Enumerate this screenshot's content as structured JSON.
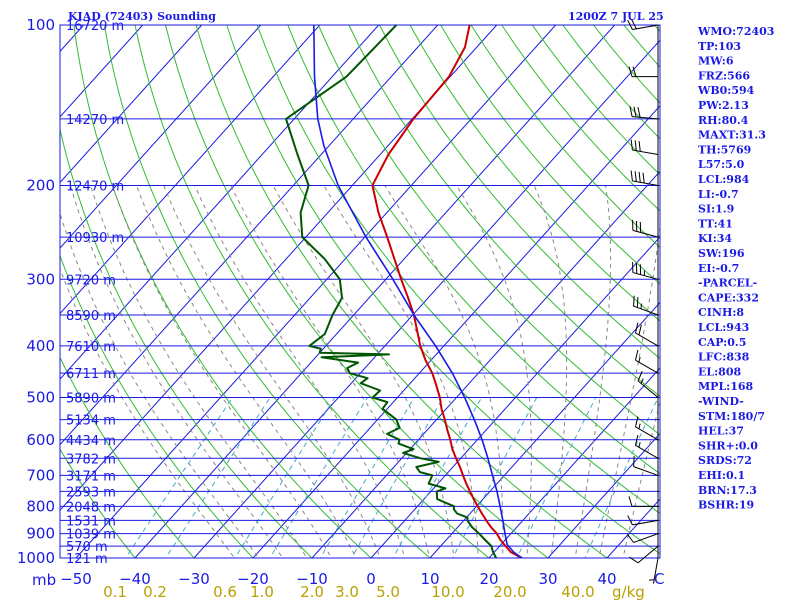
{
  "header": {
    "station": "KIAD (72403) Sounding",
    "datetime": "1200Z  7 JUL 25"
  },
  "colors": {
    "isobar": "#1a1ae6",
    "isotherm": "#1a1ae6",
    "dry_adiabat": "#33bb33",
    "moist_adiabat": "#888888",
    "mixing_ratio": "#44aacc",
    "temperature": "#cc0000",
    "dewpoint": "#005500",
    "parcel": "#1a1ae6",
    "wind": "#000000",
    "mixing_label": "#b8a100"
  },
  "chart_data": {
    "type": "line",
    "chart_kind": "skew-T log-P sounding",
    "pressure_unit_label": "mb",
    "mixing_ratio_unit_label": "g/kg",
    "pressure_levels": [
      {
        "p": 100,
        "label": "100",
        "height": "16720 m"
      },
      {
        "p": 150,
        "label": "",
        "height": "14270 m"
      },
      {
        "p": 200,
        "label": "200",
        "height": "12470 m"
      },
      {
        "p": 250,
        "label": "",
        "height": "10930 m"
      },
      {
        "p": 300,
        "label": "300",
        "height": "9720 m"
      },
      {
        "p": 350,
        "label": "",
        "height": "8590 m"
      },
      {
        "p": 400,
        "label": "400",
        "height": "7610 m"
      },
      {
        "p": 450,
        "label": "",
        "height": "6711 m"
      },
      {
        "p": 500,
        "label": "500",
        "height": "5890 m"
      },
      {
        "p": 550,
        "label": "",
        "height": "5134 m"
      },
      {
        "p": 600,
        "label": "600",
        "height": "4434 m"
      },
      {
        "p": 650,
        "label": "",
        "height": "3782 m"
      },
      {
        "p": 700,
        "label": "700",
        "height": "3171 m"
      },
      {
        "p": 750,
        "label": "",
        "height": "2593 m"
      },
      {
        "p": 800,
        "label": "800",
        "height": "2048 m"
      },
      {
        "p": 850,
        "label": "",
        "height": "1531 m"
      },
      {
        "p": 900,
        "label": "900",
        "height": "1039 m"
      },
      {
        "p": 950,
        "label": "",
        "height": "570 m"
      },
      {
        "p": 1000,
        "label": "1000",
        "height": "121 m"
      }
    ],
    "temperature_ticks": [
      -50,
      -40,
      -30,
      -20,
      -10,
      0,
      10,
      20,
      30,
      40
    ],
    "temperature_tick_labels": [
      "−50",
      "−40",
      "−30",
      "−20",
      "−10",
      "0",
      "10",
      "20",
      "30",
      "40"
    ],
    "temperature_axis_end_label": "C",
    "mixing_ratio_labels": [
      "0.1",
      "0.2",
      "0.6",
      "1.0",
      "2.0",
      "3.0",
      "5.0",
      "10.0",
      "20.0",
      "40.0"
    ],
    "series": [
      {
        "name": "Temperature",
        "points": [
          [
            1005,
            25.0
          ],
          [
            1000,
            25.6
          ],
          [
            975,
            22.8
          ],
          [
            950,
            21.0
          ],
          [
            925,
            19.2
          ],
          [
            900,
            17.6
          ],
          [
            875,
            15.6
          ],
          [
            850,
            13.8
          ],
          [
            825,
            12.0
          ],
          [
            800,
            10.2
          ],
          [
            775,
            8.4
          ],
          [
            750,
            6.6
          ],
          [
            725,
            4.8
          ],
          [
            700,
            3.0
          ],
          [
            675,
            1.2
          ],
          [
            650,
            -0.8
          ],
          [
            625,
            -2.8
          ],
          [
            600,
            -4.6
          ],
          [
            575,
            -6.6
          ],
          [
            550,
            -8.6
          ],
          [
            525,
            -10.8
          ],
          [
            500,
            -12.8
          ],
          [
            475,
            -15.2
          ],
          [
            450,
            -17.8
          ],
          [
            425,
            -21.0
          ],
          [
            400,
            -24.0
          ],
          [
            375,
            -26.8
          ],
          [
            350,
            -29.8
          ],
          [
            325,
            -33.4
          ],
          [
            300,
            -37.4
          ],
          [
            275,
            -41.6
          ],
          [
            250,
            -46.2
          ],
          [
            225,
            -51.4
          ],
          [
            200,
            -56.6
          ],
          [
            175,
            -58.6
          ],
          [
            150,
            -59.8
          ],
          [
            125,
            -60.2
          ],
          [
            110,
            -62.0
          ],
          [
            100,
            -64.6
          ]
        ]
      },
      {
        "name": "Dewpoint",
        "points": [
          [
            1005,
            21.4
          ],
          [
            1000,
            21.2
          ],
          [
            975,
            19.8
          ],
          [
            950,
            18.6
          ],
          [
            925,
            16.6
          ],
          [
            900,
            14.6
          ],
          [
            875,
            12.4
          ],
          [
            850,
            10.6
          ],
          [
            840,
            10.2
          ],
          [
            825,
            7.8
          ],
          [
            810,
            6.6
          ],
          [
            800,
            6.2
          ],
          [
            790,
            4.6
          ],
          [
            775,
            2.2
          ],
          [
            750,
            1.0
          ],
          [
            740,
            2.0
          ],
          [
            725,
            -1.6
          ],
          [
            700,
            -2.2
          ],
          [
            690,
            -4.8
          ],
          [
            675,
            -6.2
          ],
          [
            660,
            -3.2
          ],
          [
            650,
            -6.8
          ],
          [
            635,
            -10.6
          ],
          [
            625,
            -9.4
          ],
          [
            610,
            -12.8
          ],
          [
            600,
            -13.2
          ],
          [
            585,
            -16.2
          ],
          [
            570,
            -15.0
          ],
          [
            550,
            -16.8
          ],
          [
            525,
            -20.8
          ],
          [
            510,
            -21.0
          ],
          [
            500,
            -24.2
          ],
          [
            485,
            -24.0
          ],
          [
            470,
            -28.4
          ],
          [
            460,
            -28.0
          ],
          [
            450,
            -31.8
          ],
          [
            440,
            -33.0
          ],
          [
            430,
            -32.0
          ],
          [
            420,
            -39.0
          ],
          [
            415,
            -28.0
          ],
          [
            412,
            -40.0
          ],
          [
            405,
            -40.4
          ],
          [
            400,
            -42.8
          ],
          [
            380,
            -42.0
          ],
          [
            350,
            -43.6
          ],
          [
            325,
            -44.6
          ],
          [
            300,
            -47.8
          ],
          [
            275,
            -53.4
          ],
          [
            250,
            -60.6
          ],
          [
            225,
            -64.6
          ],
          [
            200,
            -67.4
          ],
          [
            175,
            -74.0
          ],
          [
            150,
            -81.4
          ],
          [
            125,
            -77.6
          ],
          [
            100,
            -77.0
          ]
        ]
      },
      {
        "name": "Parcel",
        "points": [
          [
            1000,
            25.6
          ],
          [
            975,
            23.3
          ],
          [
            943,
            21.0
          ],
          [
            900,
            19.0
          ],
          [
            850,
            16.6
          ],
          [
            800,
            14.0
          ],
          [
            750,
            11.2
          ],
          [
            700,
            8.0
          ],
          [
            650,
            4.6
          ],
          [
            600,
            0.8
          ],
          [
            550,
            -3.6
          ],
          [
            500,
            -8.6
          ],
          [
            450,
            -14.4
          ],
          [
            400,
            -21.4
          ],
          [
            350,
            -29.8
          ],
          [
            300,
            -38.8
          ],
          [
            250,
            -49.8
          ],
          [
            200,
            -62.4
          ],
          [
            168,
            -71.0
          ],
          [
            150,
            -76.0
          ],
          [
            125,
            -83.0
          ],
          [
            100,
            -91.0
          ]
        ]
      }
    ],
    "wind_barbs": [
      {
        "p": 1000,
        "dir": 190,
        "speed": 5
      },
      {
        "p": 950,
        "dir": 230,
        "speed": 10
      },
      {
        "p": 900,
        "dir": 250,
        "speed": 10
      },
      {
        "p": 850,
        "dir": 260,
        "speed": 10
      },
      {
        "p": 800,
        "dir": 270,
        "speed": 10
      },
      {
        "p": 700,
        "dir": 290,
        "speed": 10
      },
      {
        "p": 650,
        "dir": 300,
        "speed": 15
      },
      {
        "p": 600,
        "dir": 300,
        "speed": 15
      },
      {
        "p": 500,
        "dir": 310,
        "speed": 15
      },
      {
        "p": 450,
        "dir": 300,
        "speed": 15
      },
      {
        "p": 400,
        "dir": 300,
        "speed": 20
      },
      {
        "p": 350,
        "dir": 290,
        "speed": 25
      },
      {
        "p": 300,
        "dir": 285,
        "speed": 35
      },
      {
        "p": 250,
        "dir": 285,
        "speed": 30
      },
      {
        "p": 200,
        "dir": 280,
        "speed": 40
      },
      {
        "p": 175,
        "dir": 280,
        "speed": 30
      },
      {
        "p": 150,
        "dir": 275,
        "speed": 30
      },
      {
        "p": 125,
        "dir": 270,
        "speed": 20
      },
      {
        "p": 100,
        "dir": 260,
        "speed": 20
      }
    ]
  },
  "stats": [
    "WMO:72403",
    "TP:103",
    "MW:6",
    "FRZ:566",
    "WB0:594",
    "PW:2.13",
    "RH:80.4",
    "MAXT:31.3",
    "TH:5769",
    "L57:5.0",
    "LCL:984",
    "LI:-0.7",
    "SI:1.9",
    "TT:41",
    "KI:34",
    "SW:196",
    "EI:-0.7",
    "-PARCEL-",
    "CAPE:332",
    "CINH:8",
    "LCL:943",
    "CAP:0.5",
    "LFC:838",
    "EL:808",
    "MPL:168",
    "-WIND-",
    "STM:180/7",
    "HEL:37",
    "SHR+:0.0",
    "SRDS:72",
    "EHI:0.1",
    "BRN:17.3",
    "BSHR:19"
  ]
}
